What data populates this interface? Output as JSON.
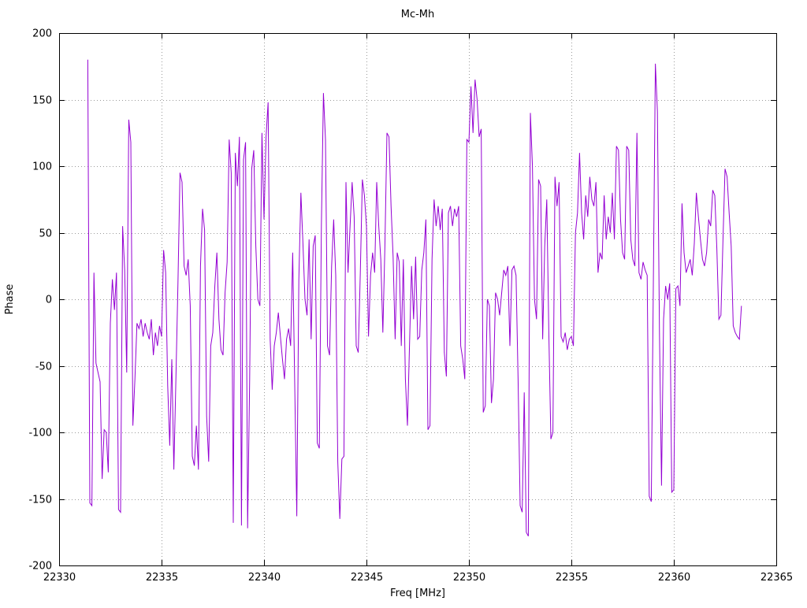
{
  "chart_data": {
    "type": "line",
    "title": "Mc-Mh",
    "xlabel": "Freq [MHz]",
    "ylabel": "Phase",
    "xlim": [
      22330,
      22365
    ],
    "ylim": [
      -200,
      200
    ],
    "xticks": [
      22330,
      22335,
      22340,
      22345,
      22350,
      22355,
      22360,
      22365
    ],
    "yticks": [
      -200,
      -150,
      -100,
      -50,
      0,
      50,
      100,
      150,
      200
    ],
    "grid": true,
    "legend": "none",
    "line_color": "#9400d3",
    "background_color": "#ffffff",
    "series": [
      {
        "name": "Mc-Mh",
        "x_start": 22331.4,
        "x_step": 0.1,
        "values": [
          180,
          -153,
          -155,
          20,
          -48,
          -55,
          -62,
          -135,
          -98,
          -100,
          -130,
          -18,
          15,
          -8,
          20,
          -158,
          -160,
          55,
          22,
          -55,
          135,
          118,
          -95,
          -60,
          -18,
          -22,
          -15,
          -28,
          -18,
          -25,
          -30,
          -15,
          -42,
          -25,
          -35,
          -20,
          -28,
          37,
          20,
          -65,
          -110,
          -45,
          -128,
          -60,
          12,
          95,
          88,
          25,
          18,
          30,
          -5,
          -118,
          -125,
          -95,
          -128,
          25,
          68,
          52,
          -88,
          -122,
          -35,
          -25,
          10,
          35,
          -15,
          -38,
          -42,
          5,
          28,
          120,
          95,
          -168,
          110,
          85,
          122,
          -170,
          105,
          118,
          -172,
          -60,
          98,
          112,
          40,
          0,
          -5,
          125,
          60,
          122,
          148,
          -30,
          -68,
          -35,
          -25,
          -10,
          -28,
          -45,
          -60,
          -30,
          -22,
          -35,
          35,
          -65,
          -163,
          15,
          80,
          42,
          0,
          -12,
          45,
          -30,
          40,
          48,
          -108,
          -112,
          55,
          155,
          120,
          -35,
          -42,
          25,
          60,
          18,
          -122,
          -165,
          -120,
          -118,
          88,
          20,
          55,
          88,
          62,
          -35,
          -40,
          20,
          90,
          78,
          55,
          -28,
          18,
          35,
          20,
          88,
          55,
          30,
          -25,
          40,
          125,
          122,
          70,
          32,
          -30,
          35,
          28,
          -35,
          30,
          -60,
          -95,
          -35,
          25,
          -15,
          32,
          -30,
          -28,
          22,
          35,
          60,
          -98,
          -95,
          30,
          75,
          55,
          70,
          52,
          68,
          -40,
          -58,
          65,
          70,
          55,
          68,
          62,
          70,
          -35,
          -45,
          -60,
          120,
          118,
          160,
          125,
          165,
          150,
          122,
          128,
          -85,
          -80,
          0,
          -5,
          -78,
          -60,
          5,
          0,
          -12,
          5,
          22,
          18,
          25,
          -35,
          22,
          25,
          18,
          -60,
          -155,
          -160,
          -70,
          -175,
          -178,
          140,
          100,
          0,
          -15,
          90,
          85,
          -30,
          40,
          75,
          -25,
          -105,
          -100,
          92,
          70,
          88,
          -28,
          -32,
          -25,
          -38,
          -30,
          -28,
          -35,
          50,
          65,
          110,
          65,
          45,
          78,
          62,
          92,
          75,
          70,
          88,
          20,
          35,
          30,
          78,
          45,
          62,
          50,
          80,
          45,
          115,
          112,
          60,
          35,
          30,
          115,
          112,
          45,
          30,
          25,
          125,
          20,
          15,
          28,
          22,
          18,
          -148,
          -152,
          10,
          177,
          141,
          -25,
          -140,
          -15,
          10,
          0,
          12,
          -145,
          -143,
          8,
          10,
          -5,
          72,
          35,
          20,
          25,
          30,
          18,
          42,
          80,
          62,
          45,
          30,
          25,
          35,
          60,
          55,
          82,
          78,
          38,
          -15,
          -12,
          45,
          98,
          92,
          65,
          40,
          -20,
          -25,
          -28,
          -30,
          -5
        ]
      }
    ]
  }
}
